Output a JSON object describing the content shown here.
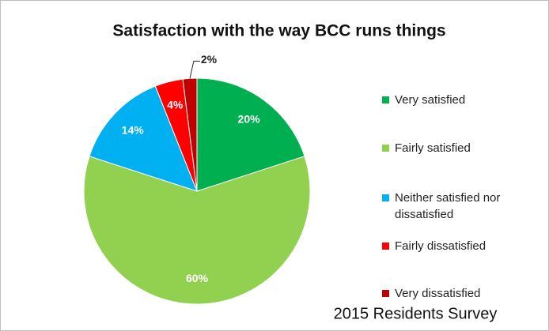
{
  "chart_data": {
    "type": "pie",
    "title": "Satisfaction with the way BCC runs things",
    "categories": [
      "Very satisfied",
      "Fairly satisfied",
      "Neither satisfied nor dissatisfied",
      "Fairly dissatisfied",
      "Very dissatisfied"
    ],
    "values": [
      20,
      60,
      14,
      4,
      2
    ],
    "value_labels": [
      "20%",
      "60%",
      "14%",
      "4%",
      "2%"
    ],
    "colors": [
      "#00b050",
      "#92d050",
      "#00b0f0",
      "#ff0000",
      "#c00000"
    ],
    "legend": "right",
    "annotation": "2015 Residents Survey"
  }
}
